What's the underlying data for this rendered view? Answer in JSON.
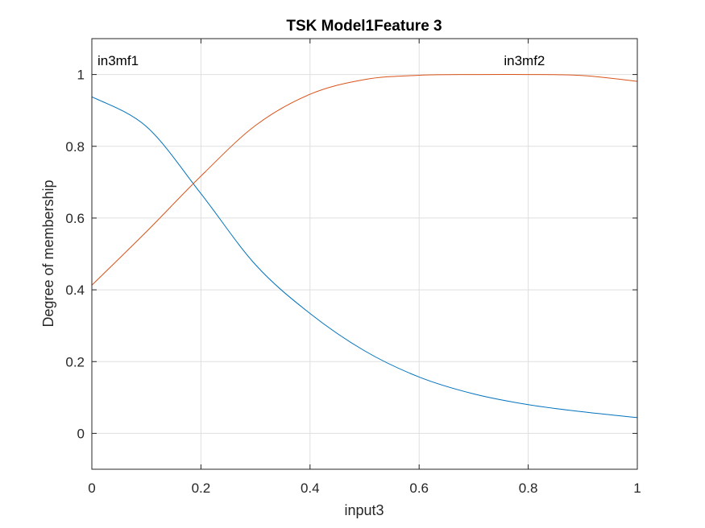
{
  "chart_data": {
    "type": "line",
    "title": "TSK Model1Feature 3",
    "xlabel": "input3",
    "ylabel": "Degree of membership",
    "xlim": [
      0,
      1
    ],
    "ylim": [
      -0.1,
      1.1
    ],
    "xticks": [
      "0",
      "0.2",
      "0.4",
      "0.6",
      "0.8",
      "1"
    ],
    "yticks": [
      "0",
      "0.2",
      "0.4",
      "0.6",
      "0.8",
      "1"
    ],
    "grid": true,
    "series": [
      {
        "name": "in3mf1",
        "color": "#0072BD",
        "x": [
          0,
          0.1,
          0.2,
          0.3,
          0.4,
          0.5,
          0.6,
          0.7,
          0.8,
          0.9,
          1.0
        ],
        "y": [
          0.938,
          0.855,
          0.668,
          0.47,
          0.334,
          0.23,
          0.157,
          0.11,
          0.08,
          0.06,
          0.044
        ]
      },
      {
        "name": "in3mf2",
        "color": "#D95319",
        "x": [
          0,
          0.1,
          0.2,
          0.3,
          0.4,
          0.5,
          0.6,
          0.7,
          0.8,
          0.9,
          1.0
        ],
        "y": [
          0.413,
          0.562,
          0.717,
          0.858,
          0.945,
          0.986,
          0.998,
          1.0,
          1.0,
          0.997,
          0.981
        ]
      }
    ],
    "annotations": [
      {
        "text": "in3mf1",
        "x": 0.0,
        "y": 1.04
      },
      {
        "text": "in3mf2",
        "x": 0.745,
        "y": 1.04
      }
    ]
  }
}
